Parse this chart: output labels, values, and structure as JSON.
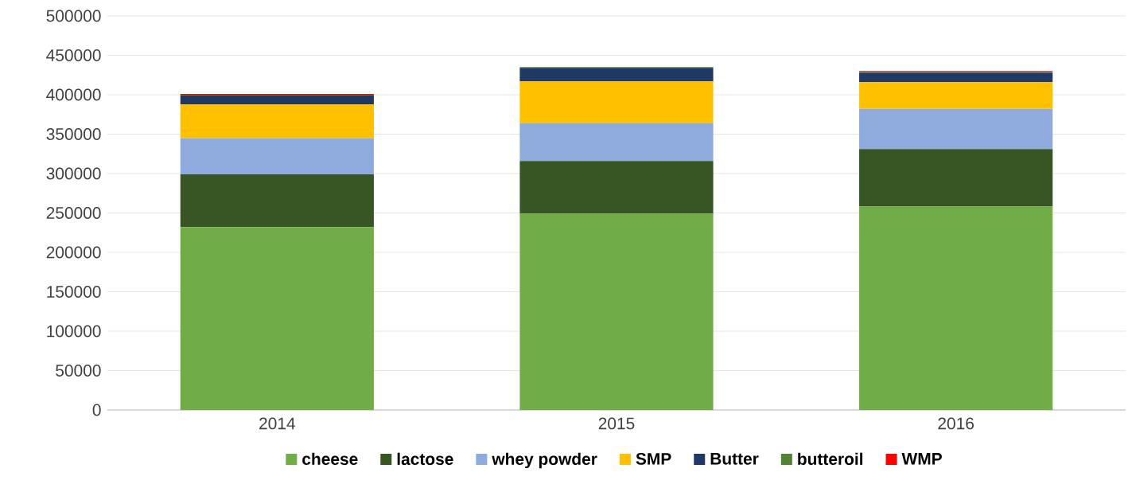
{
  "chart_data": {
    "type": "bar",
    "stacked": true,
    "categories": [
      "2014",
      "2015",
      "2016"
    ],
    "series": [
      {
        "name": "cheese",
        "color": "#70ad47",
        "values": [
          232000,
          249000,
          258000
        ]
      },
      {
        "name": "lactose",
        "color": "#375623",
        "values": [
          67000,
          67000,
          73000
        ]
      },
      {
        "name": "whey powder",
        "color": "#8faadc",
        "values": [
          46000,
          48000,
          51000
        ]
      },
      {
        "name": "SMP",
        "color": "#ffc000",
        "values": [
          43000,
          53000,
          34000
        ]
      },
      {
        "name": "Butter",
        "color": "#203864",
        "values": [
          11000,
          17000,
          12000
        ]
      },
      {
        "name": "butteroil",
        "color": "#548235",
        "values": [
          1000,
          1000,
          1000
        ]
      },
      {
        "name": "WMP",
        "color": "#ff0000",
        "values": [
          1000,
          null,
          1000
        ]
      }
    ],
    "ylim": [
      0,
      500000
    ],
    "yticks": [
      0,
      50000,
      100000,
      150000,
      200000,
      250000,
      300000,
      350000,
      400000,
      450000,
      500000
    ],
    "grid": "y",
    "legend": "bottom"
  }
}
